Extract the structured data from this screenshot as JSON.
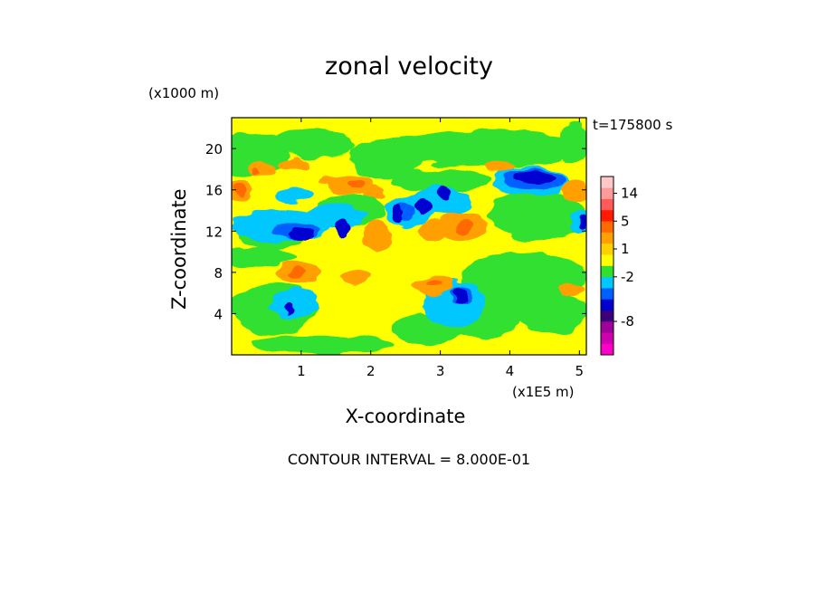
{
  "chart_data": {
    "type": "heatmap",
    "title": "zonal velocity",
    "xlabel": "X-coordinate",
    "ylabel": "Z-coordinate",
    "x_unit_label": "(x1E5 m)",
    "y_unit_label": "(x1000 m)",
    "time_label": "t=175800 s",
    "footer": "CONTOUR INTERVAL = 8.000E-01",
    "xlim": [
      0,
      5.1
    ],
    "ylim": [
      0,
      23
    ],
    "x_ticks": [
      1,
      2,
      3,
      4,
      5
    ],
    "y_ticks": [
      4,
      8,
      12,
      16,
      20
    ],
    "colorbar": {
      "levels": [
        {
          "color": "#ff00c8"
        },
        {
          "color": "#d000b0"
        },
        {
          "color": "#a0009c"
        },
        {
          "color": "#3c007a"
        },
        {
          "color": "#0000d0"
        },
        {
          "color": "#0060ff"
        },
        {
          "color": "#00c8ff"
        },
        {
          "color": "#30e030"
        },
        {
          "color": "#ffff00"
        },
        {
          "color": "#ffd000"
        },
        {
          "color": "#ffa000"
        },
        {
          "color": "#ff6a00"
        },
        {
          "color": "#ff1a00"
        },
        {
          "color": "#ff5a5a"
        },
        {
          "color": "#ff9a9a"
        },
        {
          "color": "#ffc8c8"
        }
      ],
      "tick_labels": [
        {
          "text": "14",
          "level": 14.5
        },
        {
          "text": "5",
          "level": 12
        },
        {
          "text": "1",
          "level": 9.5
        },
        {
          "text": "-2",
          "level": 7
        },
        {
          "text": "-8",
          "level": 3
        }
      ]
    },
    "field": {
      "background_color": "#ffff00",
      "blobs": [
        {
          "x": 0.3,
          "z": 19.5,
          "rx": 0.5,
          "rz": 2.2,
          "color": "#30e030"
        },
        {
          "x": 1.2,
          "z": 20.5,
          "rx": 0.6,
          "rz": 1.5,
          "color": "#30e030"
        },
        {
          "x": 2.2,
          "z": 19.0,
          "rx": 0.5,
          "rz": 2.0,
          "color": "#30e030"
        },
        {
          "x": 3.7,
          "z": 20.0,
          "rx": 1.4,
          "rz": 1.8,
          "color": "#30e030"
        },
        {
          "x": 4.9,
          "z": 20.5,
          "rx": 0.25,
          "rz": 2.0,
          "color": "#30e030"
        },
        {
          "x": 4.4,
          "z": 13.5,
          "rx": 0.7,
          "rz": 2.5,
          "color": "#30e030"
        },
        {
          "x": 4.2,
          "z": 7.5,
          "rx": 0.9,
          "rz": 2.5,
          "color": "#30e030"
        },
        {
          "x": 4.6,
          "z": 4.0,
          "rx": 0.5,
          "rz": 2.0,
          "color": "#30e030"
        },
        {
          "x": 0.6,
          "z": 4.5,
          "rx": 0.6,
          "rz": 2.5,
          "color": "#30e030"
        },
        {
          "x": 0.4,
          "z": 9.5,
          "rx": 0.5,
          "rz": 1.0,
          "color": "#30e030"
        },
        {
          "x": 1.3,
          "z": 1.0,
          "rx": 1.0,
          "rz": 1.0,
          "color": "#30e030"
        },
        {
          "x": 2.8,
          "z": 2.5,
          "rx": 0.5,
          "rz": 1.5,
          "color": "#30e030"
        },
        {
          "x": 3.6,
          "z": 4.5,
          "rx": 0.6,
          "rz": 3.0,
          "color": "#30e030"
        },
        {
          "x": 1.7,
          "z": 14.0,
          "rx": 0.5,
          "rz": 1.5,
          "color": "#30e030"
        },
        {
          "x": 3.0,
          "z": 17.0,
          "rx": 0.7,
          "rz": 1.0,
          "color": "#30e030"
        },
        {
          "x": 0.6,
          "z": 11.5,
          "rx": 0.5,
          "rz": 1.2,
          "color": "#30e030"
        },
        {
          "x": 0.9,
          "z": 5.0,
          "rx": 0.35,
          "rz": 1.4,
          "color": "#00c8ff"
        },
        {
          "x": 3.2,
          "z": 5.0,
          "rx": 0.45,
          "rz": 2.2,
          "color": "#00c8ff"
        },
        {
          "x": 0.7,
          "z": 12.5,
          "rx": 0.7,
          "rz": 1.6,
          "color": "#00c8ff"
        },
        {
          "x": 1.5,
          "z": 13.5,
          "rx": 0.45,
          "rz": 1.2,
          "color": "#00c8ff"
        },
        {
          "x": 2.55,
          "z": 14.0,
          "rx": 0.35,
          "rz": 1.6,
          "color": "#00c8ff"
        },
        {
          "x": 3.0,
          "z": 15.0,
          "rx": 0.45,
          "rz": 1.3,
          "color": "#00c8ff"
        },
        {
          "x": 4.3,
          "z": 16.8,
          "rx": 0.55,
          "rz": 1.5,
          "color": "#00c8ff"
        },
        {
          "x": 5.0,
          "z": 13.0,
          "rx": 0.15,
          "rz": 1.2,
          "color": "#00c8ff"
        },
        {
          "x": 0.9,
          "z": 15.5,
          "rx": 0.3,
          "rz": 0.7,
          "color": "#00c8ff"
        },
        {
          "x": 0.9,
          "z": 12.0,
          "rx": 0.35,
          "rz": 0.9,
          "color": "#0060ff"
        },
        {
          "x": 2.5,
          "z": 14.0,
          "rx": 0.15,
          "rz": 0.9,
          "color": "#0060ff"
        },
        {
          "x": 4.35,
          "z": 17.0,
          "rx": 0.45,
          "rz": 1.0,
          "color": "#0060ff"
        },
        {
          "x": 3.3,
          "z": 5.8,
          "rx": 0.15,
          "rz": 0.8,
          "color": "#0060ff"
        },
        {
          "x": 0.98,
          "z": 11.6,
          "rx": 0.2,
          "rz": 0.6,
          "color": "#0000d0"
        },
        {
          "x": 1.6,
          "z": 12.2,
          "rx": 0.1,
          "rz": 0.9,
          "color": "#0000d0"
        },
        {
          "x": 2.4,
          "z": 13.7,
          "rx": 0.08,
          "rz": 0.9,
          "color": "#0000d0"
        },
        {
          "x": 2.75,
          "z": 14.4,
          "rx": 0.1,
          "rz": 0.8,
          "color": "#0000d0"
        },
        {
          "x": 3.05,
          "z": 15.5,
          "rx": 0.1,
          "rz": 0.8,
          "color": "#0000d0"
        },
        {
          "x": 4.35,
          "z": 17.2,
          "rx": 0.28,
          "rz": 0.6,
          "color": "#0000d0"
        },
        {
          "x": 3.28,
          "z": 5.8,
          "rx": 0.09,
          "rz": 0.7,
          "color": "#0000d0"
        },
        {
          "x": 5.05,
          "z": 13.0,
          "rx": 0.06,
          "rz": 0.5,
          "color": "#0000d0"
        },
        {
          "x": 0.8,
          "z": 4.5,
          "rx": 0.05,
          "rz": 0.5,
          "color": "#0000d0"
        },
        {
          "x": 0.1,
          "z": 16.0,
          "rx": 0.2,
          "rz": 1.0,
          "color": "#ffa000"
        },
        {
          "x": 0.45,
          "z": 17.8,
          "rx": 0.2,
          "rz": 0.7,
          "color": "#ffa000"
        },
        {
          "x": 0.9,
          "z": 18.5,
          "rx": 0.25,
          "rz": 0.6,
          "color": "#ffa000"
        },
        {
          "x": 1.7,
          "z": 16.5,
          "rx": 0.35,
          "rz": 1.0,
          "color": "#ffa000"
        },
        {
          "x": 2.05,
          "z": 15.8,
          "rx": 0.15,
          "rz": 0.8,
          "color": "#ffa000"
        },
        {
          "x": 3.3,
          "z": 12.5,
          "rx": 0.35,
          "rz": 1.5,
          "color": "#ffa000"
        },
        {
          "x": 2.9,
          "z": 12.0,
          "rx": 0.2,
          "rz": 1.0,
          "color": "#ffa000"
        },
        {
          "x": 0.95,
          "z": 8.0,
          "rx": 0.3,
          "rz": 1.0,
          "color": "#ffa000"
        },
        {
          "x": 1.8,
          "z": 7.6,
          "rx": 0.2,
          "rz": 0.7,
          "color": "#ffa000"
        },
        {
          "x": 2.9,
          "z": 6.7,
          "rx": 0.3,
          "rz": 0.8,
          "color": "#ffa000"
        },
        {
          "x": 3.85,
          "z": 18.3,
          "rx": 0.2,
          "rz": 0.6,
          "color": "#ffa000"
        },
        {
          "x": 4.95,
          "z": 16.0,
          "rx": 0.2,
          "rz": 1.0,
          "color": "#ffa000"
        },
        {
          "x": 4.9,
          "z": 6.3,
          "rx": 0.2,
          "rz": 0.6,
          "color": "#ffa000"
        },
        {
          "x": 2.1,
          "z": 11.5,
          "rx": 0.2,
          "rz": 1.5,
          "color": "#ffa000"
        },
        {
          "x": 1.4,
          "z": 17.0,
          "rx": 0.15,
          "rz": 0.5,
          "color": "#ffa000"
        },
        {
          "x": 0.12,
          "z": 16.0,
          "rx": 0.1,
          "rz": 0.5,
          "color": "#ff6a00"
        },
        {
          "x": 3.35,
          "z": 12.5,
          "rx": 0.12,
          "rz": 0.7,
          "color": "#ff6a00"
        },
        {
          "x": 0.35,
          "z": 17.6,
          "rx": 0.06,
          "rz": 0.3,
          "color": "#ff6a00"
        },
        {
          "x": 1.8,
          "z": 16.6,
          "rx": 0.12,
          "rz": 0.4,
          "color": "#ff6a00"
        },
        {
          "x": 2.9,
          "z": 6.8,
          "rx": 0.1,
          "rz": 0.4,
          "color": "#ff6a00"
        },
        {
          "x": 0.95,
          "z": 8.0,
          "rx": 0.1,
          "rz": 0.4,
          "color": "#ff6a00"
        }
      ]
    }
  }
}
